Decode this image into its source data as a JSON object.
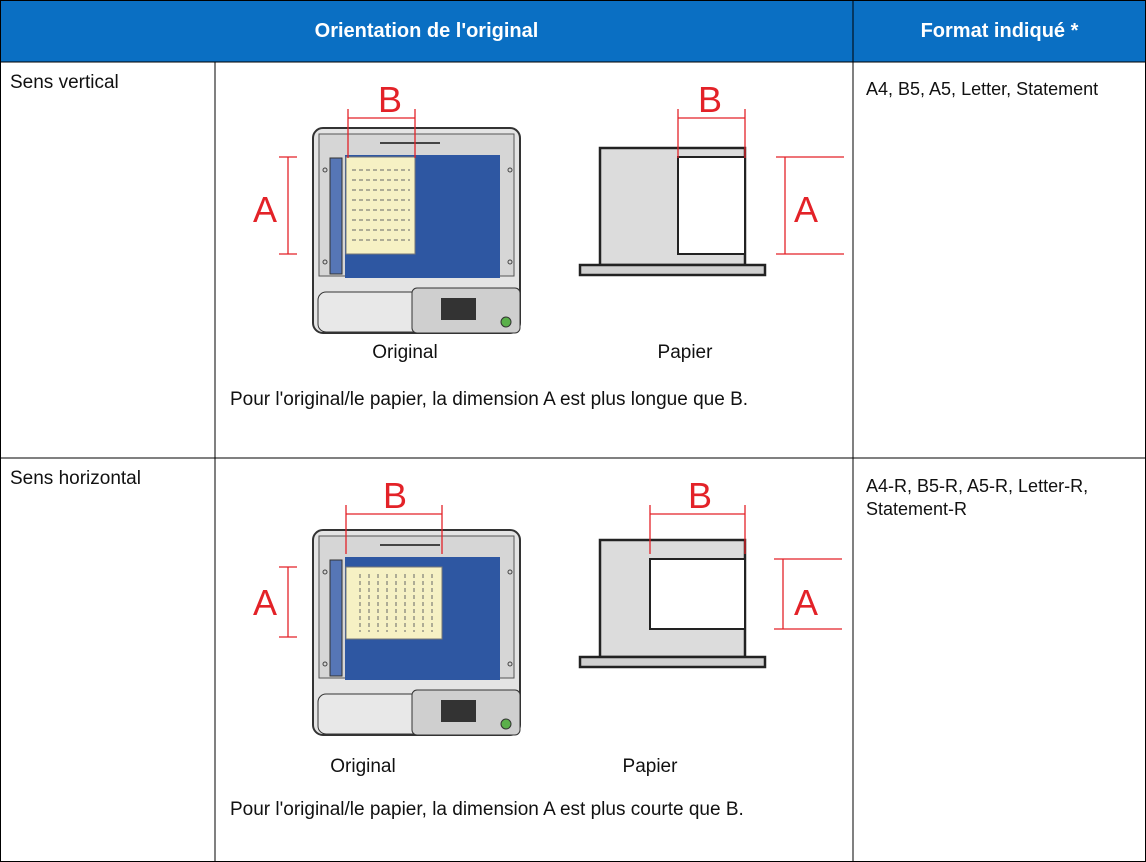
{
  "table": {
    "headers": [
      "Orientation de l'original",
      "Format indiqué *"
    ],
    "rows": [
      {
        "orientation": "Sens vertical",
        "diagram": {
          "original_width": "B",
          "original_height": "A",
          "original_caption": "Original",
          "paper_width": "B",
          "paper_height": "A",
          "paper_caption": "Papier"
        },
        "note": "Pour l'original/le papier, la dimension A est plus longue que B.",
        "formats": "A4, B5, A5, Letter, Statement"
      },
      {
        "orientation": "Sens horizontal",
        "diagram": {
          "original_width": "B",
          "original_height": "A",
          "original_caption": "Original",
          "paper_width": "B",
          "paper_height": "A",
          "paper_caption": "Papier"
        },
        "note": "Pour l'original/le papier, la dimension A est plus courte que B.",
        "formats": "A4-R, B5-R, A5-R, Letter-R, Statement-R"
      }
    ]
  }
}
